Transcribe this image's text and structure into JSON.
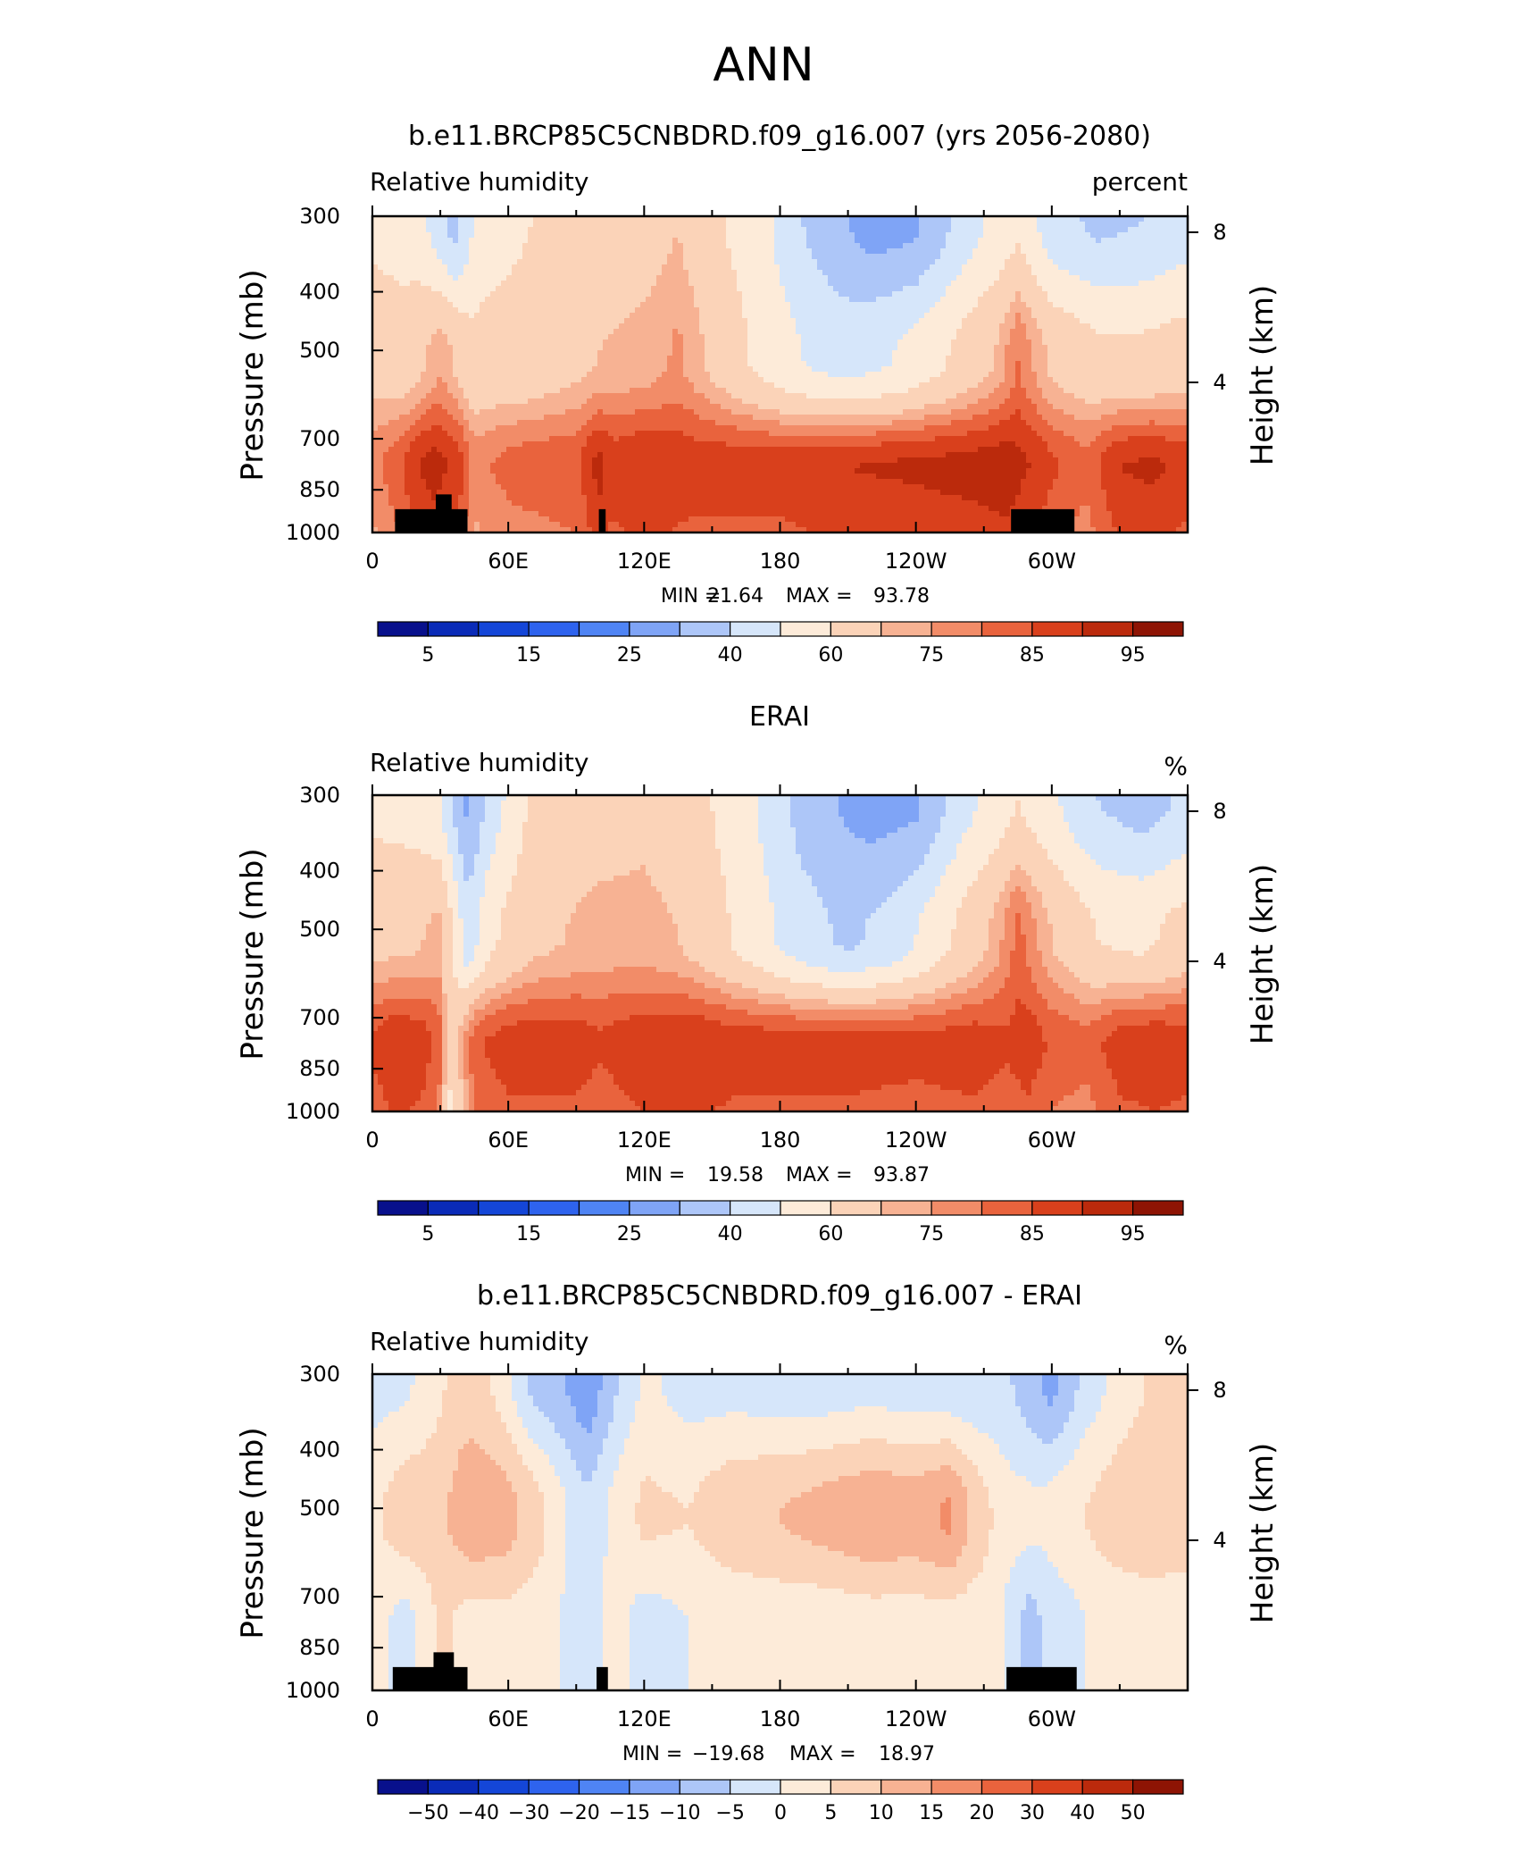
{
  "figure_title": "ANN",
  "colors": {
    "rh_palette": [
      "#08108c",
      "#0a2bb8",
      "#1446d8",
      "#2e63ee",
      "#4f84f4",
      "#7fa4f6",
      "#adc6f8",
      "#d6e6fa",
      "#fdebd9",
      "#fbd3b8",
      "#f7b293",
      "#f28c68",
      "#e9633d",
      "#d9401c",
      "#bb2a0c",
      "#8e1404"
    ],
    "land_mask": "#000000"
  },
  "chart_data": [
    {
      "type": "heatmap",
      "title": "b.e11.BRCP85C5CNBDRD.f09_g16.007 (yrs 2056-2080)",
      "left_label": "Relative humidity",
      "right_label": "percent",
      "ylabel": "Pressure (mb)",
      "ylabel_right": "Height (km)",
      "x_tick_labels": [
        "0",
        "60E",
        "120E",
        "180",
        "120W",
        "60W"
      ],
      "x_ticks_lon": [
        0,
        60,
        120,
        180,
        240,
        300
      ],
      "xlim": [
        0,
        360
      ],
      "y_tick_labels": [
        "300",
        "400",
        "500",
        "700",
        "850",
        "1000"
      ],
      "y_ticks": [
        300,
        400,
        500,
        700,
        850,
        1000
      ],
      "ylim": [
        1000,
        300
      ],
      "y_scale": "log-pressure",
      "right_ticks_km": [
        4,
        8
      ],
      "stats": {
        "min_label": "MIN =",
        "min": "21.64",
        "max_label": "MAX =",
        "max": "93.78"
      },
      "colorbar_labels": [
        "5",
        "15",
        "25",
        "40",
        "60",
        "75",
        "85",
        "95"
      ],
      "lon_peaks": [
        [
          0,
          78
        ],
        [
          12,
          84
        ],
        [
          20,
          90
        ],
        [
          28,
          92
        ],
        [
          38,
          88
        ],
        [
          45,
          78
        ],
        [
          60,
          82
        ],
        [
          90,
          84
        ],
        [
          100,
          92
        ],
        [
          106,
          88
        ],
        [
          120,
          90
        ],
        [
          140,
          88
        ],
        [
          160,
          88
        ],
        [
          180,
          88
        ],
        [
          210,
          90
        ],
        [
          240,
          91
        ],
        [
          265,
          92
        ],
        [
          280,
          93
        ],
        [
          290,
          90
        ],
        [
          300,
          86
        ],
        [
          315,
          82
        ],
        [
          330,
          90
        ],
        [
          345,
          91
        ],
        [
          360,
          88
        ]
      ],
      "lon_top": [
        [
          0,
          58
        ],
        [
          20,
          55
        ],
        [
          36,
          36
        ],
        [
          48,
          56
        ],
        [
          70,
          60
        ],
        [
          100,
          64
        ],
        [
          120,
          66
        ],
        [
          135,
          70
        ],
        [
          150,
          62
        ],
        [
          170,
          55
        ],
        [
          190,
          40
        ],
        [
          205,
          32
        ],
        [
          220,
          26
        ],
        [
          240,
          28
        ],
        [
          260,
          44
        ],
        [
          285,
          58
        ],
        [
          300,
          44
        ],
        [
          320,
          38
        ],
        [
          340,
          40
        ],
        [
          360,
          46
        ]
      ],
      "lon_mid": [
        [
          0,
          66
        ],
        [
          15,
          64
        ],
        [
          30,
          74
        ],
        [
          45,
          62
        ],
        [
          70,
          64
        ],
        [
          100,
          70
        ],
        [
          120,
          72
        ],
        [
          135,
          76
        ],
        [
          150,
          68
        ],
        [
          170,
          58
        ],
        [
          190,
          50
        ],
        [
          210,
          46
        ],
        [
          230,
          50
        ],
        [
          250,
          58
        ],
        [
          275,
          70
        ],
        [
          285,
          80
        ],
        [
          300,
          68
        ],
        [
          320,
          62
        ],
        [
          340,
          62
        ],
        [
          360,
          64
        ]
      ],
      "mask": [
        {
          "lon0": 10,
          "lon1": 42,
          "p_top": 915
        },
        {
          "lon0": 28,
          "lon1": 35,
          "p_top": 865
        },
        {
          "lon0": 100,
          "lon1": 103,
          "p_top": 915
        },
        {
          "lon0": 282,
          "lon1": 310,
          "p_top": 915
        }
      ],
      "diff": false
    },
    {
      "type": "heatmap",
      "title": "ERAI",
      "left_label": "Relative humidity",
      "right_label": "%",
      "ylabel": "Pressure (mb)",
      "ylabel_right": "Height (km)",
      "x_tick_labels": [
        "0",
        "60E",
        "120E",
        "180",
        "120W",
        "60W"
      ],
      "x_ticks_lon": [
        0,
        60,
        120,
        180,
        240,
        300
      ],
      "xlim": [
        0,
        360
      ],
      "y_tick_labels": [
        "300",
        "400",
        "500",
        "700",
        "850",
        "1000"
      ],
      "y_ticks": [
        300,
        400,
        500,
        700,
        850,
        1000
      ],
      "ylim": [
        1000,
        300
      ],
      "y_scale": "log-pressure",
      "right_ticks_km": [
        4,
        8
      ],
      "stats": {
        "min_label": "MIN =",
        "min": "19.58",
        "max_label": "MAX =",
        "max": "93.87"
      },
      "colorbar_labels": [
        "5",
        "15",
        "25",
        "40",
        "60",
        "75",
        "85",
        "95"
      ],
      "lon_peaks": [
        [
          0,
          86
        ],
        [
          10,
          90
        ],
        [
          22,
          88
        ],
        [
          30,
          82
        ],
        [
          34,
          62
        ],
        [
          38,
          70
        ],
        [
          45,
          84
        ],
        [
          60,
          88
        ],
        [
          90,
          88
        ],
        [
          100,
          86
        ],
        [
          120,
          89
        ],
        [
          140,
          90
        ],
        [
          160,
          88
        ],
        [
          180,
          88
        ],
        [
          210,
          88
        ],
        [
          240,
          87
        ],
        [
          265,
          88
        ],
        [
          280,
          86
        ],
        [
          290,
          88
        ],
        [
          300,
          84
        ],
        [
          315,
          82
        ],
        [
          330,
          88
        ],
        [
          345,
          89
        ],
        [
          360,
          88
        ]
      ],
      "lon_top": [
        [
          0,
          58
        ],
        [
          20,
          56
        ],
        [
          30,
          50
        ],
        [
          42,
          28
        ],
        [
          52,
          44
        ],
        [
          70,
          62
        ],
        [
          100,
          66
        ],
        [
          120,
          68
        ],
        [
          135,
          64
        ],
        [
          150,
          60
        ],
        [
          170,
          50
        ],
        [
          190,
          36
        ],
        [
          205,
          30
        ],
        [
          220,
          26
        ],
        [
          240,
          28
        ],
        [
          260,
          46
        ],
        [
          285,
          60
        ],
        [
          300,
          52
        ],
        [
          320,
          40
        ],
        [
          340,
          36
        ],
        [
          360,
          42
        ]
      ],
      "lon_mid": [
        [
          0,
          68
        ],
        [
          15,
          68
        ],
        [
          30,
          72
        ],
        [
          42,
          44
        ],
        [
          52,
          58
        ],
        [
          70,
          68
        ],
        [
          100,
          72
        ],
        [
          120,
          72
        ],
        [
          135,
          70
        ],
        [
          150,
          64
        ],
        [
          170,
          54
        ],
        [
          190,
          44
        ],
        [
          210,
          38
        ],
        [
          230,
          44
        ],
        [
          250,
          56
        ],
        [
          275,
          72
        ],
        [
          285,
          82
        ],
        [
          300,
          70
        ],
        [
          320,
          60
        ],
        [
          340,
          58
        ],
        [
          360,
          64
        ]
      ],
      "mask": [],
      "diff": false
    },
    {
      "type": "heatmap",
      "title": "b.e11.BRCP85C5CNBDRD.f09_g16.007 - ERAI",
      "left_label": "Relative humidity",
      "right_label": "%",
      "ylabel": "Pressure (mb)",
      "ylabel_right": "Height (km)",
      "x_tick_labels": [
        "0",
        "60E",
        "120E",
        "180",
        "120W",
        "60W"
      ],
      "x_ticks_lon": [
        0,
        60,
        120,
        180,
        240,
        300
      ],
      "xlim": [
        0,
        360
      ],
      "y_tick_labels": [
        "300",
        "400",
        "500",
        "700",
        "850",
        "1000"
      ],
      "y_ticks": [
        300,
        400,
        500,
        700,
        850,
        1000
      ],
      "ylim": [
        1000,
        300
      ],
      "y_scale": "log-pressure",
      "right_ticks_km": [
        4,
        8
      ],
      "stats": {
        "min_label": "MIN =",
        "min": "−19.68",
        "max_label": "MAX =",
        "max": "18.97"
      },
      "colorbar_labels": [
        "−50",
        "−40",
        "−30",
        "−20",
        "−15",
        "−10",
        "−5",
        "0",
        "5",
        "10",
        "15",
        "20",
        "30",
        "40",
        "50"
      ],
      "lon_peaks": [
        [
          0,
          2
        ],
        [
          15,
          -2
        ],
        [
          30,
          6
        ],
        [
          45,
          3
        ],
        [
          60,
          4
        ],
        [
          80,
          1
        ],
        [
          95,
          -4
        ],
        [
          105,
          2
        ],
        [
          120,
          -2
        ],
        [
          140,
          0
        ],
        [
          160,
          1
        ],
        [
          180,
          2
        ],
        [
          200,
          2
        ],
        [
          220,
          3
        ],
        [
          240,
          3
        ],
        [
          260,
          3
        ],
        [
          275,
          2
        ],
        [
          290,
          -7
        ],
        [
          300,
          -3
        ],
        [
          320,
          1
        ],
        [
          340,
          2
        ],
        [
          360,
          2
        ]
      ],
      "lon_top": [
        [
          0,
          -2
        ],
        [
          15,
          -1
        ],
        [
          25,
          2
        ],
        [
          40,
          8
        ],
        [
          55,
          4
        ],
        [
          70,
          -6
        ],
        [
          85,
          -10
        ],
        [
          95,
          -14
        ],
        [
          110,
          -4
        ],
        [
          120,
          1
        ],
        [
          140,
          -2
        ],
        [
          160,
          -2
        ],
        [
          180,
          -3
        ],
        [
          200,
          -3
        ],
        [
          220,
          -2
        ],
        [
          240,
          -3
        ],
        [
          260,
          -4
        ],
        [
          280,
          -4
        ],
        [
          300,
          -12
        ],
        [
          315,
          -3
        ],
        [
          330,
          2
        ],
        [
          345,
          6
        ],
        [
          360,
          10
        ]
      ],
      "lon_mid": [
        [
          0,
          4
        ],
        [
          15,
          8
        ],
        [
          30,
          9
        ],
        [
          45,
          14
        ],
        [
          60,
          12
        ],
        [
          75,
          6
        ],
        [
          90,
          -2
        ],
        [
          95,
          -4
        ],
        [
          110,
          3
        ],
        [
          120,
          6
        ],
        [
          140,
          5
        ],
        [
          160,
          9
        ],
        [
          180,
          10
        ],
        [
          200,
          12
        ],
        [
          220,
          14
        ],
        [
          240,
          13
        ],
        [
          255,
          16
        ],
        [
          265,
          9
        ],
        [
          280,
          2
        ],
        [
          295,
          1
        ],
        [
          310,
          4
        ],
        [
          330,
          8
        ],
        [
          345,
          9
        ],
        [
          360,
          8
        ]
      ],
      "mask": [
        {
          "lon0": 9,
          "lon1": 42,
          "p_top": 915
        },
        {
          "lon0": 27,
          "lon1": 36,
          "p_top": 865
        },
        {
          "lon0": 99,
          "lon1": 104,
          "p_top": 915
        },
        {
          "lon0": 280,
          "lon1": 311,
          "p_top": 915
        }
      ],
      "diff": true
    }
  ]
}
